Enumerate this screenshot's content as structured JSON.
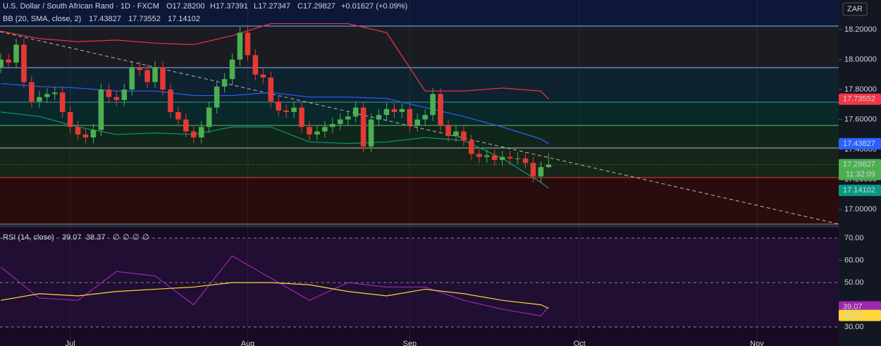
{
  "header": {
    "symbol": "U.S. Dollar / South African Rand · 1D · FXCM",
    "ohlc": [
      "O17.28200",
      "H17.37391",
      "L17.27347",
      "C17.29827",
      "+0.01627 (+0.09%)"
    ],
    "bb_title": "BB (20, SMA, close, 2)",
    "rsi_title": "RSI (14, close)",
    "rsi_empty": [
      "∅",
      "∅",
      "∅",
      "∅"
    ],
    "currency": "ZAR",
    "countdown": "11:32:09"
  },
  "chart_data": [
    {
      "type": "candlestick",
      "x": [
        0,
        1,
        2,
        3,
        4,
        5,
        6,
        7,
        8,
        9,
        10,
        11,
        12,
        13,
        14,
        15,
        16,
        17,
        18,
        19,
        20,
        21,
        22,
        23,
        24,
        25,
        26,
        27,
        28,
        29,
        30,
        31,
        32,
        33,
        34,
        35,
        36,
        37,
        38,
        39,
        40,
        41,
        42,
        43,
        44,
        45,
        46,
        47,
        48,
        49,
        50,
        51,
        52,
        53,
        54,
        55,
        56,
        57,
        58,
        59,
        60,
        61,
        62,
        63,
        64,
        65,
        66,
        67,
        68,
        69,
        70,
        71
      ],
      "open": [
        17.95,
        18.0,
        17.98,
        18.1,
        17.85,
        17.72,
        17.75,
        17.77,
        17.78,
        17.65,
        17.55,
        17.5,
        17.48,
        17.53,
        17.8,
        17.75,
        17.73,
        17.8,
        17.95,
        17.93,
        17.85,
        17.95,
        17.8,
        17.65,
        17.6,
        17.52,
        17.48,
        17.55,
        17.68,
        17.82,
        17.87,
        18.0,
        18.18,
        18.03,
        17.9,
        17.88,
        17.72,
        17.66,
        17.65,
        17.68,
        17.55,
        17.5,
        17.52,
        17.55,
        17.57,
        17.6,
        17.62,
        17.68,
        17.42,
        17.6,
        17.63,
        17.67,
        17.65,
        17.67,
        17.56,
        17.6,
        17.63,
        17.77,
        17.56,
        17.49,
        17.52,
        17.46,
        17.37,
        17.35,
        17.36,
        17.33,
        17.35,
        17.34,
        17.34,
        17.31,
        17.22,
        17.282
      ],
      "high": [
        18.04,
        18.04,
        18.14,
        18.14,
        17.89,
        17.79,
        17.81,
        17.82,
        17.82,
        17.69,
        17.59,
        17.54,
        17.57,
        17.84,
        17.84,
        17.79,
        17.84,
        17.99,
        17.99,
        17.97,
        17.99,
        17.99,
        17.84,
        17.69,
        17.64,
        17.56,
        17.59,
        17.72,
        17.86,
        17.91,
        18.04,
        18.22,
        18.22,
        18.07,
        17.94,
        17.92,
        17.76,
        17.7,
        17.72,
        17.72,
        17.59,
        17.56,
        17.59,
        17.61,
        17.64,
        17.66,
        17.72,
        17.72,
        17.64,
        17.67,
        17.71,
        17.71,
        17.71,
        17.71,
        17.64,
        17.67,
        17.81,
        17.81,
        17.6,
        17.56,
        17.56,
        17.5,
        17.41,
        17.4,
        17.4,
        17.39,
        17.39,
        17.38,
        17.38,
        17.35,
        17.32,
        17.37391
      ],
      "low": [
        17.91,
        17.94,
        17.94,
        17.81,
        17.68,
        17.68,
        17.71,
        17.73,
        17.61,
        17.51,
        17.46,
        17.44,
        17.44,
        17.49,
        17.71,
        17.69,
        17.69,
        17.76,
        17.89,
        17.81,
        17.81,
        17.76,
        17.61,
        17.56,
        17.48,
        17.44,
        17.44,
        17.51,
        17.64,
        17.78,
        17.83,
        17.96,
        17.99,
        17.86,
        17.84,
        17.68,
        17.62,
        17.61,
        17.61,
        17.51,
        17.46,
        17.46,
        17.48,
        17.51,
        17.53,
        17.56,
        17.58,
        17.38,
        17.38,
        17.56,
        17.59,
        17.61,
        17.61,
        17.52,
        17.52,
        17.56,
        17.59,
        17.52,
        17.45,
        17.45,
        17.42,
        17.33,
        17.31,
        17.31,
        17.29,
        17.29,
        17.3,
        17.3,
        17.27,
        17.18,
        17.18,
        17.27347
      ],
      "close": [
        18.0,
        17.98,
        18.1,
        17.85,
        17.72,
        17.75,
        17.77,
        17.78,
        17.65,
        17.55,
        17.5,
        17.48,
        17.53,
        17.8,
        17.75,
        17.73,
        17.8,
        17.95,
        17.93,
        17.85,
        17.95,
        17.8,
        17.65,
        17.6,
        17.52,
        17.48,
        17.55,
        17.68,
        17.82,
        17.87,
        18.0,
        18.18,
        18.03,
        17.9,
        17.88,
        17.72,
        17.66,
        17.65,
        17.68,
        17.55,
        17.5,
        17.52,
        17.55,
        17.57,
        17.6,
        17.62,
        17.68,
        17.42,
        17.6,
        17.63,
        17.67,
        17.65,
        17.67,
        17.56,
        17.6,
        17.63,
        17.77,
        17.56,
        17.49,
        17.52,
        17.46,
        17.37,
        17.35,
        17.36,
        17.33,
        17.35,
        17.34,
        17.34,
        17.31,
        17.22,
        17.282,
        17.29827
      ],
      "up_color": "#4caf50",
      "down_color": "#e53935",
      "series": [
        {
          "color": "#2962ff",
          "x": [
            0,
            5,
            10,
            15,
            20,
            25,
            30,
            35,
            40,
            45,
            50,
            55,
            60,
            65,
            70,
            71
          ],
          "values": [
            17.84,
            17.82,
            17.81,
            17.79,
            17.79,
            17.76,
            17.76,
            17.78,
            17.75,
            17.75,
            17.74,
            17.68,
            17.62,
            17.55,
            17.47,
            17.43827
          ]
        },
        {
          "color": "#f23645",
          "x": [
            0,
            5,
            10,
            15,
            20,
            25,
            30,
            35,
            40,
            45,
            50,
            55,
            60,
            65,
            70,
            71
          ],
          "values": [
            18.19,
            18.14,
            18.12,
            18.13,
            18.11,
            18.1,
            18.16,
            18.24,
            18.24,
            18.24,
            18.18,
            17.79,
            17.79,
            17.81,
            17.79,
            17.73552
          ]
        },
        {
          "color": "#089981",
          "x": [
            0,
            5,
            10,
            15,
            20,
            25,
            30,
            35,
            40,
            45,
            50,
            55,
            60,
            65,
            70,
            71
          ],
          "values": [
            17.65,
            17.62,
            17.55,
            17.5,
            17.51,
            17.5,
            17.55,
            17.55,
            17.45,
            17.44,
            17.45,
            17.48,
            17.46,
            17.34,
            17.18,
            17.14102
          ]
        }
      ],
      "xlim": [
        -0.1,
        108.6
      ],
      "xticks": [
        {
          "value": 9,
          "label": "Jul"
        },
        {
          "value": 32,
          "label": "Aug"
        },
        {
          "value": 53,
          "label": "Sep"
        },
        {
          "value": 75,
          "label": "Oct"
        },
        {
          "value": 98,
          "label": "Nov"
        }
      ],
      "ylim": [
        16.892,
        18.398
      ],
      "yticks": [
        {
          "value": 17.0,
          "label": "17.00000"
        },
        {
          "value": 17.2,
          "label": "17.20000"
        },
        {
          "value": 17.4,
          "label": "17.40000"
        },
        {
          "value": 17.6,
          "label": "17.60000"
        },
        {
          "value": 17.8,
          "label": "17.80000"
        },
        {
          "value": 18.0,
          "label": "18.00000"
        },
        {
          "value": 18.2,
          "label": "18.20000"
        }
      ]
    },
    {
      "type": "line",
      "series": [
        {
          "color": "#9c27b0",
          "x": [
            0,
            5,
            10,
            15,
            20,
            25,
            30,
            35,
            40,
            45,
            50,
            55,
            60,
            65,
            70,
            71
          ],
          "values": [
            57,
            43,
            42,
            55,
            53,
            40,
            62,
            52,
            42,
            50,
            48,
            48,
            42,
            38,
            35,
            39.07
          ]
        },
        {
          "color": "#fdd835",
          "x": [
            0,
            5,
            10,
            15,
            20,
            25,
            30,
            35,
            40,
            45,
            50,
            55,
            60,
            65,
            70,
            71
          ],
          "values": [
            42,
            45,
            44,
            46,
            47,
            48,
            50,
            50,
            49,
            46,
            44,
            47,
            45,
            42,
            40,
            38.37
          ]
        }
      ],
      "xlim": [
        -0.1,
        108.6
      ],
      "ylim": [
        21.43,
        73.49
      ],
      "yticks": [
        {
          "value": 30,
          "label": "30.00"
        },
        {
          "value": 50,
          "label": "50.00"
        },
        {
          "value": 60,
          "label": "60.00"
        },
        {
          "value": 70,
          "label": "70.00"
        }
      ]
    }
  ]
}
